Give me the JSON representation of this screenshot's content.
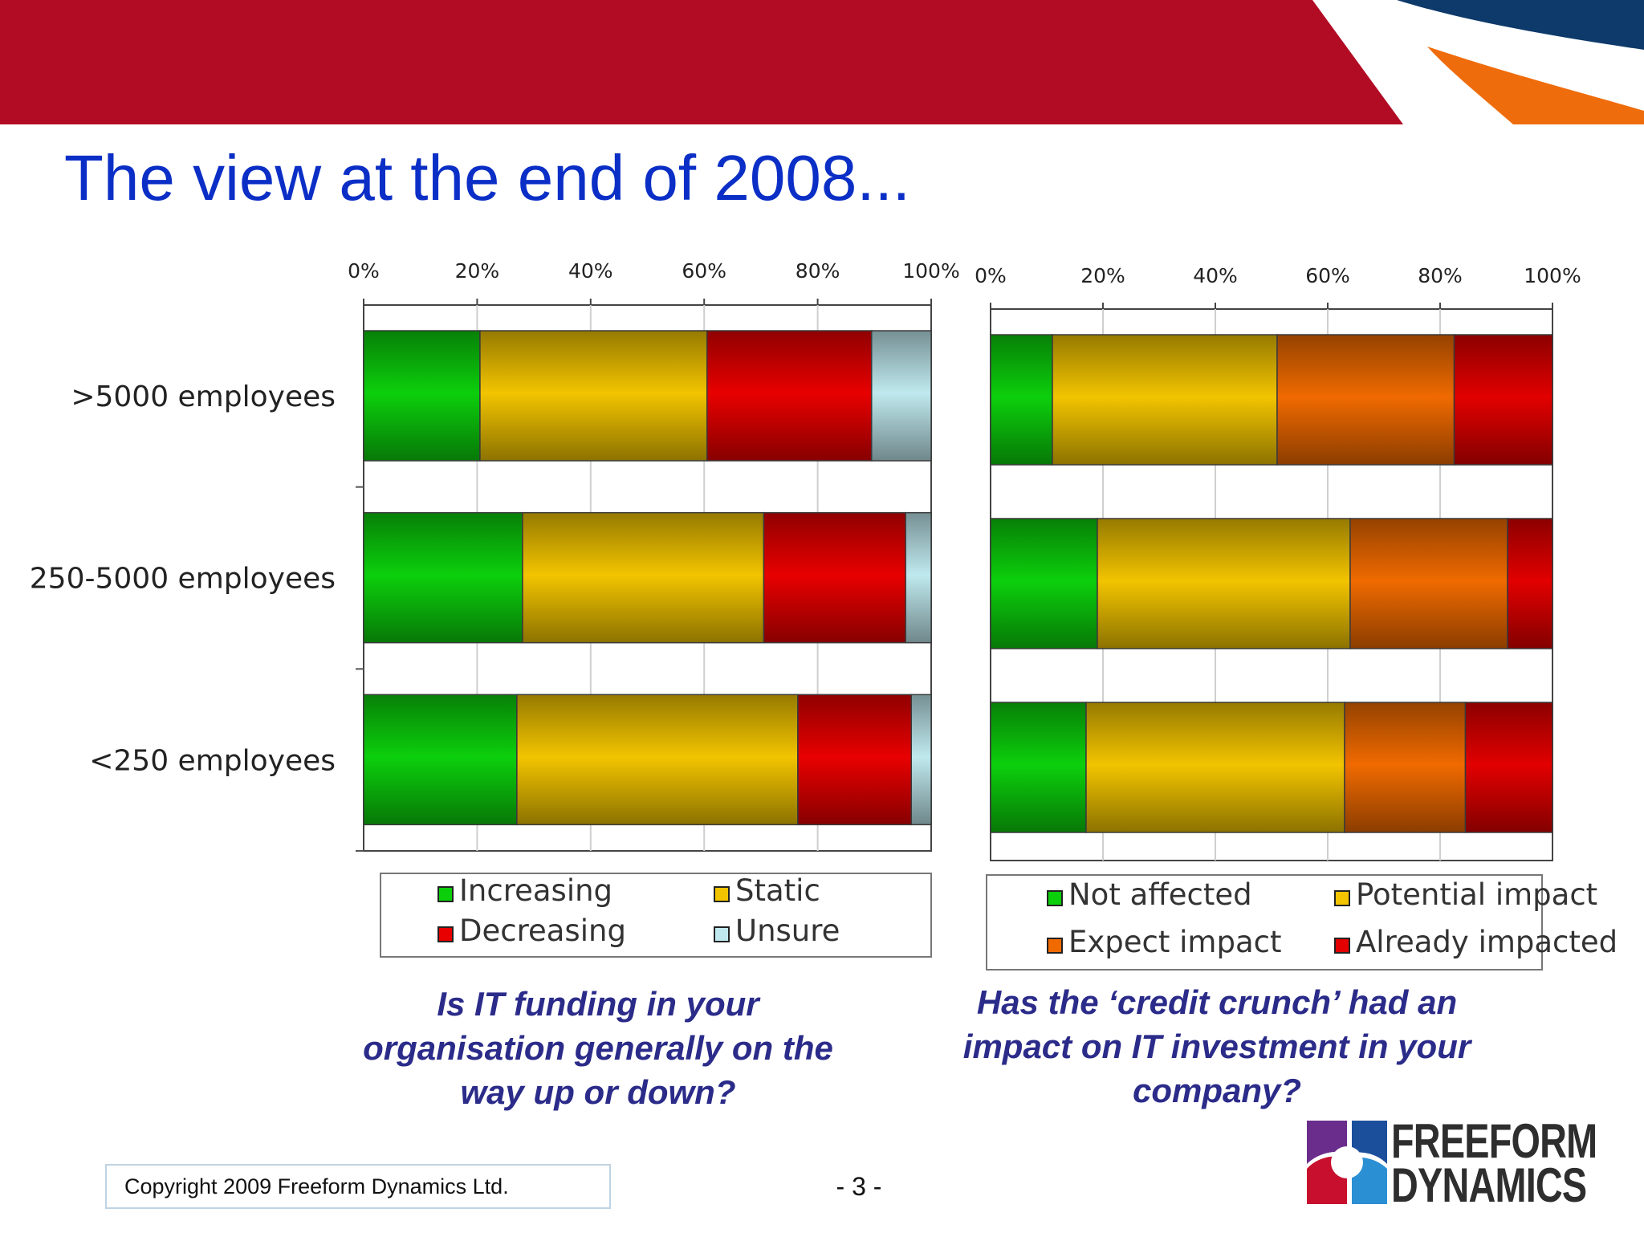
{
  "title": "The view at the end of 2008...",
  "colors": {
    "banner_red": "#b20b24",
    "banner_navy": "#0d3a6a",
    "banner_orange": "#ef6c0c",
    "title_blue": "#0b2fc6",
    "question_blue": "#2b2b8a"
  },
  "chart_data": [
    {
      "type": "bar",
      "orientation": "horizontal",
      "stacked": true,
      "categories": [
        ">5000 employees",
        "250-5000 employees",
        "<250 employees"
      ],
      "x_ticks": [
        "0%",
        "20%",
        "40%",
        "60%",
        "80%",
        "100%"
      ],
      "xlim": [
        0,
        100
      ],
      "grid": true,
      "legend_position": "bottom",
      "series": [
        {
          "name": "Increasing",
          "color": "#0ccf0c",
          "values": [
            20.5,
            28,
            27
          ]
        },
        {
          "name": "Static",
          "color": "#f2c400",
          "values": [
            40,
            42.5,
            49.5
          ]
        },
        {
          "name": "Decreasing",
          "color": "#e80000",
          "values": [
            29,
            25,
            20
          ]
        },
        {
          "name": "Unsure",
          "color": "#bfe9ee",
          "values": [
            10.5,
            4.5,
            3.5
          ]
        }
      ],
      "caption": "Is IT funding in your organisation generally on the way up or down?"
    },
    {
      "type": "bar",
      "orientation": "horizontal",
      "stacked": true,
      "categories": [
        ">5000 employees",
        "250-5000 employees",
        "<250 employees"
      ],
      "x_ticks": [
        "0%",
        "20%",
        "40%",
        "60%",
        "80%",
        "100%"
      ],
      "xlim": [
        0,
        100
      ],
      "grid": true,
      "legend_position": "bottom",
      "series": [
        {
          "name": "Not affected",
          "color": "#0ccf0c",
          "values": [
            11,
            19,
            17
          ]
        },
        {
          "name": "Potential impact",
          "color": "#f2c400",
          "values": [
            40,
            45,
            46
          ]
        },
        {
          "name": "Expect impact",
          "color": "#f06a00",
          "values": [
            31.5,
            28,
            21.5
          ]
        },
        {
          "name": "Already impacted",
          "color": "#e20000",
          "values": [
            17.5,
            8,
            15.5
          ]
        }
      ],
      "caption": "Has the ‘credit crunch’ had an impact on IT investment in your company?"
    }
  ],
  "footer": {
    "copyright": "Copyright 2009 Freeform Dynamics Ltd.",
    "page_number": "- 3 -",
    "logo_line1": "FREEFORM",
    "logo_line2": "DYNAMICS"
  }
}
